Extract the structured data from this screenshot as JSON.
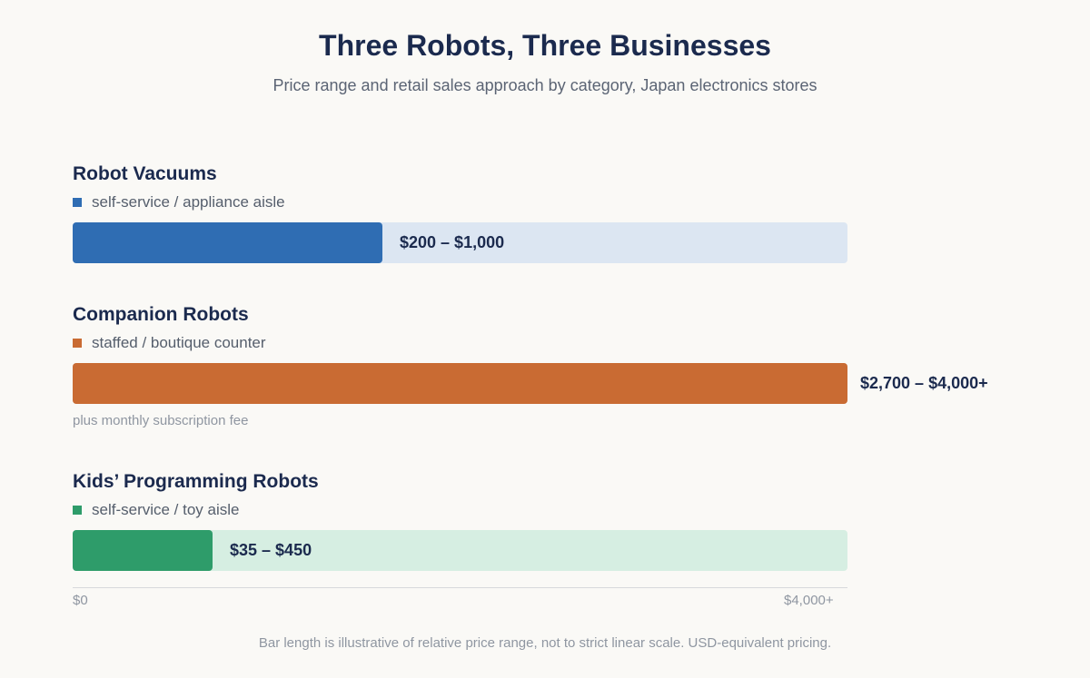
{
  "title": "Three Robots, Three Businesses",
  "subtitle": "Price range and retail sales approach by category, Japan electronics stores",
  "chart_data": {
    "type": "bar",
    "orientation": "horizontal",
    "categories": [
      "Robot Vacuums",
      "Companion Robots",
      "Kids’ Programming Robots"
    ],
    "series": [
      {
        "category": "Robot Vacuums",
        "sales_approach": "self-service / appliance aisle",
        "range_label": "$200 – $1,000",
        "price_min": 200,
        "price_max": 1000,
        "bar_fraction": 0.4,
        "color": "#2f6db3",
        "track_color": "#dce6f2",
        "note": ""
      },
      {
        "category": "Companion Robots",
        "sales_approach": "staffed / boutique counter",
        "range_label": "$2,700 – $4,000+",
        "price_min": 2700,
        "price_max": 4000,
        "bar_fraction": 1.0,
        "color": "#c96b33",
        "track_color": "#f2e2d6",
        "note": "plus monthly subscription fee"
      },
      {
        "category": "Kids’ Programming Robots",
        "sales_approach": "self-service / toy aisle",
        "range_label": "$35 – $450",
        "price_min": 35,
        "price_max": 450,
        "bar_fraction": 0.18,
        "color": "#2e9c6a",
        "track_color": "#d6eee2",
        "note": ""
      }
    ],
    "x_ticks": [
      "$0",
      "$4,000+"
    ],
    "xlim": [
      0,
      4000
    ],
    "grid": false,
    "footnote": "Bar length is illustrative of relative price range, not to strict linear scale. USD-equivalent pricing."
  }
}
